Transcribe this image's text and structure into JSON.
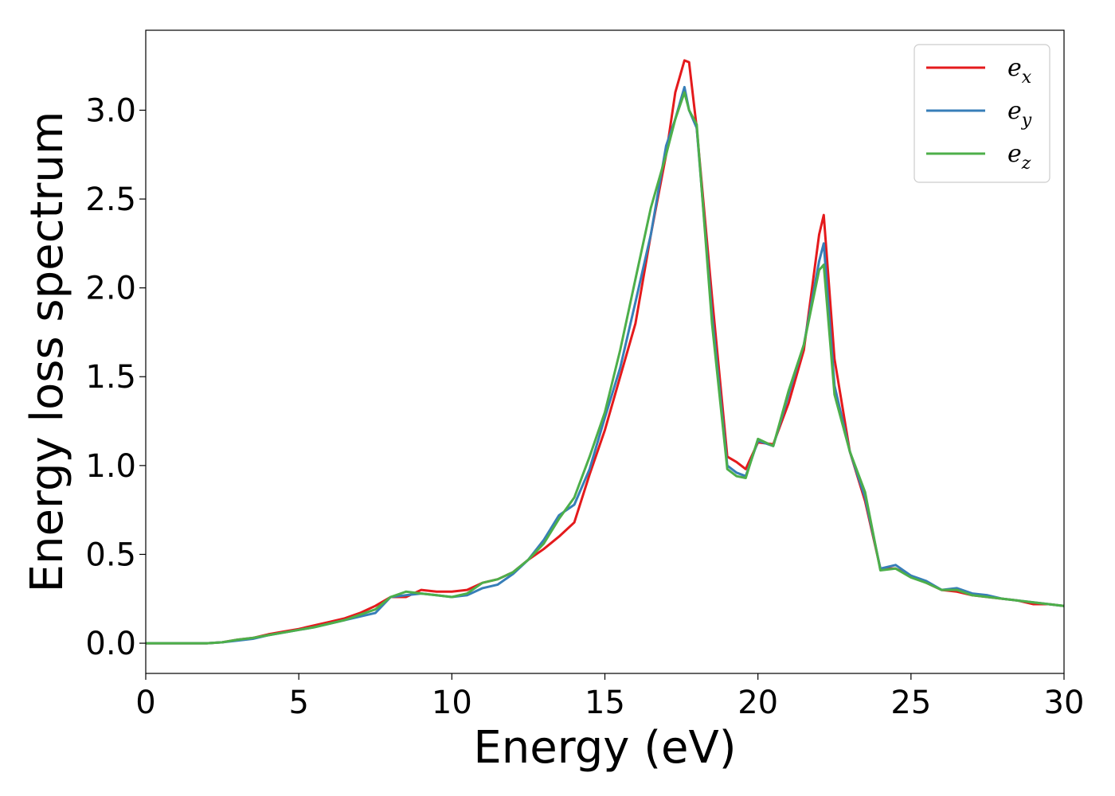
{
  "chart_data": {
    "type": "line",
    "title": "",
    "xlabel": "Energy (eV)",
    "ylabel": "Energy loss spectrum",
    "xlim": [
      0,
      30
    ],
    "ylim": [
      -0.17,
      3.45
    ],
    "xticks": [
      0,
      5,
      10,
      15,
      20,
      25,
      30
    ],
    "yticks": [
      0.0,
      0.5,
      1.0,
      1.5,
      2.0,
      2.5,
      3.0
    ],
    "xtick_labels": [
      "0",
      "5",
      "10",
      "15",
      "20",
      "25",
      "30"
    ],
    "ytick_labels": [
      "0.0",
      "0.5",
      "1.0",
      "1.5",
      "2.0",
      "2.5",
      "3.0"
    ],
    "grid": false,
    "legend": "top-right",
    "series": [
      {
        "name": "e",
        "subscript": "x",
        "color": "#e41a1c",
        "x": [
          0,
          1,
          2,
          2.5,
          3,
          3.5,
          4,
          4.5,
          5,
          5.5,
          6,
          6.5,
          7,
          7.5,
          8,
          8.5,
          9,
          9.5,
          10,
          10.5,
          11,
          11.5,
          12,
          12.5,
          13,
          13.5,
          14,
          14.5,
          15,
          15.5,
          16,
          16.5,
          17,
          17.3,
          17.6,
          17.75,
          18,
          18.5,
          19,
          19.3,
          19.6,
          20,
          20.5,
          21,
          21.5,
          22,
          22.15,
          22.5,
          23,
          23.5,
          24,
          24.5,
          25,
          25.5,
          26,
          26.5,
          27,
          27.5,
          28,
          28.5,
          29,
          29.5,
          30
        ],
        "y": [
          0,
          0,
          0,
          0.005,
          0.02,
          0.03,
          0.05,
          0.065,
          0.08,
          0.1,
          0.12,
          0.14,
          0.17,
          0.21,
          0.26,
          0.26,
          0.3,
          0.29,
          0.29,
          0.3,
          0.34,
          0.36,
          0.4,
          0.47,
          0.53,
          0.6,
          0.68,
          0.95,
          1.2,
          1.5,
          1.8,
          2.3,
          2.75,
          3.1,
          3.28,
          3.27,
          2.9,
          1.95,
          1.05,
          1.02,
          0.98,
          1.13,
          1.12,
          1.35,
          1.65,
          2.3,
          2.41,
          1.6,
          1.08,
          0.8,
          0.42,
          0.42,
          0.38,
          0.34,
          0.3,
          0.29,
          0.27,
          0.26,
          0.25,
          0.24,
          0.22,
          0.22,
          0.21
        ]
      },
      {
        "name": "e",
        "subscript": "y",
        "color": "#377eb8",
        "x": [
          0,
          1,
          2,
          2.5,
          3,
          3.5,
          4,
          4.5,
          5,
          5.5,
          6,
          6.5,
          7,
          7.5,
          8,
          8.5,
          9,
          9.5,
          10,
          10.5,
          11,
          11.5,
          12,
          12.5,
          13,
          13.5,
          14,
          14.5,
          15,
          15.5,
          16,
          16.5,
          17,
          17.3,
          17.6,
          17.75,
          18,
          18.5,
          19,
          19.3,
          19.6,
          20,
          20.5,
          21,
          21.5,
          22,
          22.15,
          22.5,
          23,
          23.5,
          24,
          24.5,
          25,
          25.5,
          26,
          26.5,
          27,
          27.5,
          28,
          28.5,
          29,
          29.5,
          30
        ],
        "y": [
          0,
          0,
          0,
          0.005,
          0.015,
          0.025,
          0.045,
          0.06,
          0.075,
          0.09,
          0.11,
          0.13,
          0.15,
          0.17,
          0.26,
          0.27,
          0.28,
          0.27,
          0.26,
          0.27,
          0.31,
          0.33,
          0.39,
          0.47,
          0.58,
          0.72,
          0.78,
          0.98,
          1.27,
          1.55,
          1.92,
          2.3,
          2.8,
          2.95,
          3.13,
          3.0,
          2.9,
          1.85,
          1.0,
          0.96,
          0.94,
          1.14,
          1.11,
          1.4,
          1.68,
          2.15,
          2.25,
          1.45,
          1.08,
          0.82,
          0.42,
          0.44,
          0.38,
          0.35,
          0.3,
          0.31,
          0.28,
          0.27,
          0.25,
          0.24,
          0.23,
          0.22,
          0.21
        ]
      },
      {
        "name": "e",
        "subscript": "z",
        "color": "#4daf4a",
        "x": [
          0,
          1,
          2,
          2.5,
          3,
          3.5,
          4,
          4.5,
          5,
          5.5,
          6,
          6.5,
          7,
          7.5,
          8,
          8.5,
          9,
          9.5,
          10,
          10.5,
          11,
          11.5,
          12,
          12.5,
          13,
          13.5,
          14,
          14.5,
          15,
          15.5,
          16,
          16.5,
          17,
          17.3,
          17.6,
          17.75,
          18,
          18.5,
          19,
          19.3,
          19.6,
          20,
          20.5,
          21,
          21.5,
          22,
          22.15,
          22.5,
          23,
          23.5,
          24,
          24.5,
          25,
          25.5,
          26,
          26.5,
          27,
          27.5,
          28,
          28.5,
          29,
          29.5,
          30
        ],
        "y": [
          0,
          0,
          0,
          0.005,
          0.02,
          0.03,
          0.045,
          0.06,
          0.075,
          0.09,
          0.11,
          0.13,
          0.16,
          0.19,
          0.26,
          0.29,
          0.28,
          0.27,
          0.26,
          0.28,
          0.34,
          0.36,
          0.4,
          0.47,
          0.56,
          0.7,
          0.82,
          1.05,
          1.3,
          1.65,
          2.05,
          2.45,
          2.75,
          2.95,
          3.1,
          3.0,
          2.92,
          1.8,
          0.98,
          0.94,
          0.93,
          1.15,
          1.11,
          1.42,
          1.68,
          2.1,
          2.13,
          1.4,
          1.08,
          0.85,
          0.41,
          0.42,
          0.37,
          0.34,
          0.3,
          0.3,
          0.27,
          0.26,
          0.25,
          0.24,
          0.23,
          0.22,
          0.21
        ]
      }
    ]
  }
}
